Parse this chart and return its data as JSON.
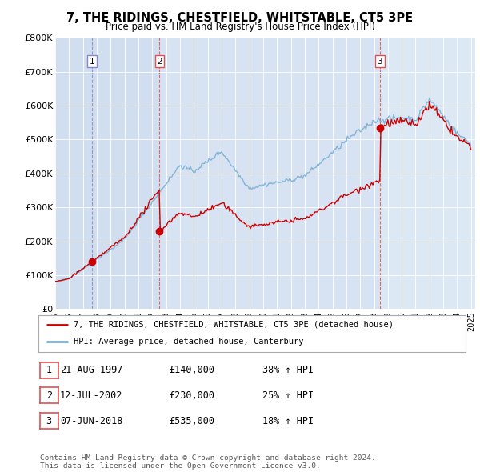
{
  "title": "7, THE RIDINGS, CHESTFIELD, WHITSTABLE, CT5 3PE",
  "subtitle": "Price paid vs. HM Land Registry's House Price Index (HPI)",
  "ylim": [
    0,
    800000
  ],
  "yticks": [
    0,
    100000,
    200000,
    300000,
    400000,
    500000,
    600000,
    700000,
    800000
  ],
  "ytick_labels": [
    "£0",
    "£100K",
    "£200K",
    "£300K",
    "£400K",
    "£500K",
    "£600K",
    "£700K",
    "£800K"
  ],
  "hpi_color": "#7bafd4",
  "price_color": "#cc0000",
  "vline1_color": "#8888cc",
  "vline23_color": "#e05050",
  "sale_dates": [
    1997.64,
    2002.53,
    2018.43
  ],
  "sale_prices": [
    140000,
    230000,
    535000
  ],
  "sale_labels": [
    "1",
    "2",
    "3"
  ],
  "legend_label_price": "7, THE RIDINGS, CHESTFIELD, WHITSTABLE, CT5 3PE (detached house)",
  "legend_label_hpi": "HPI: Average price, detached house, Canterbury",
  "table_data": [
    [
      "1",
      "21-AUG-1997",
      "£140,000",
      "38% ↑ HPI"
    ],
    [
      "2",
      "12-JUL-2002",
      "£230,000",
      "25% ↑ HPI"
    ],
    [
      "3",
      "07-JUN-2018",
      "£535,000",
      "18% ↑ HPI"
    ]
  ],
  "footer": "Contains HM Land Registry data © Crown copyright and database right 2024.\nThis data is licensed under the Open Government Licence v3.0.",
  "plot_bg_color": "#dde8f5",
  "shade_color": "#c8d8ee"
}
